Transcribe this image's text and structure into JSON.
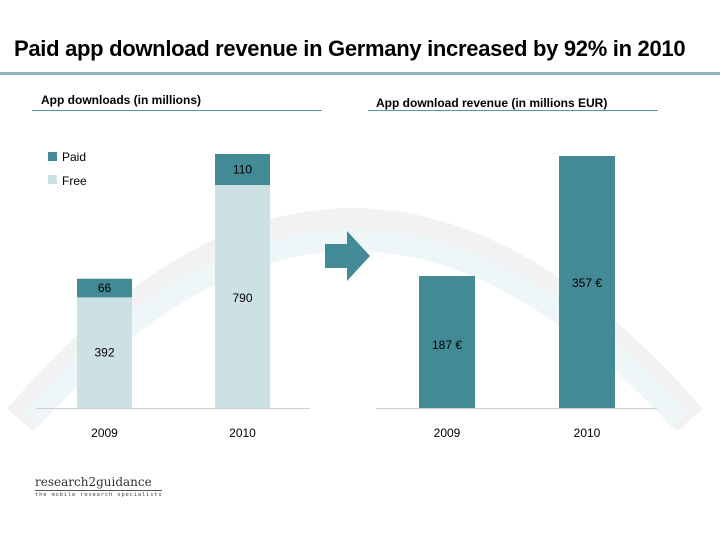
{
  "title": "Paid app download revenue in Germany increased by 92% in 2010",
  "colors": {
    "paid": "#438a97",
    "free": "#cde0e4",
    "accent": "#438a97",
    "arrow": "#438a97"
  },
  "chart_data": [
    {
      "type": "bar",
      "stacked": true,
      "title": "App downloads (in millions)",
      "categories": [
        "2009",
        "2010"
      ],
      "series": [
        {
          "name": "Free",
          "values": [
            392,
            790
          ],
          "labels": [
            "392",
            "790"
          ]
        },
        {
          "name": "Paid",
          "values": [
            66,
            110
          ],
          "labels": [
            "66",
            "110"
          ]
        }
      ],
      "legend": {
        "position": "top-left",
        "entries": [
          "Paid",
          "Free"
        ]
      },
      "xlabel": "",
      "ylabel": "",
      "ylim": [
        0,
        900
      ],
      "grid": false
    },
    {
      "type": "bar",
      "title": "App download revenue (in millions EUR)",
      "categories": [
        "2009",
        "2010"
      ],
      "series": [
        {
          "name": "Revenue",
          "values": [
            187,
            357
          ],
          "labels": [
            "187 €",
            "357 €"
          ]
        }
      ],
      "xlabel": "",
      "ylabel": "",
      "ylim": [
        0,
        360
      ],
      "grid": false
    }
  ],
  "logo": {
    "name": "research2guidance",
    "tagline": "the mobile research specialists"
  }
}
